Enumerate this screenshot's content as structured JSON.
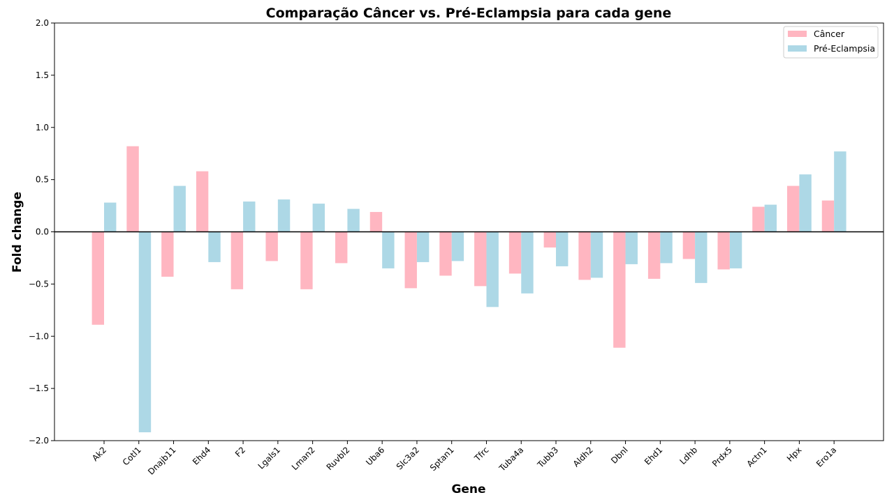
{
  "chart_data": {
    "type": "bar",
    "title": "Comparação Câncer vs. Pré-Eclampsia para cada gene",
    "xlabel": "Gene",
    "ylabel": "Fold change",
    "ylim": [
      -2.0,
      2.0
    ],
    "yticks": [
      -2.0,
      -1.5,
      -1.0,
      -0.5,
      0.0,
      0.5,
      1.0,
      1.5,
      2.0
    ],
    "ytick_labels": [
      "−2.0",
      "−1.5",
      "−1.0",
      "−0.5",
      "0.0",
      "0.5",
      "1.0",
      "1.5",
      "2.0"
    ],
    "grid": false,
    "legend_position": "top-right",
    "zero_line": true,
    "categories": [
      "Ak2",
      "Cotl1",
      "Dnajb11",
      "Ehd4",
      "F2",
      "Lgals1",
      "Lman2",
      "Ruvbl2",
      "Uba6",
      "Slc3a2",
      "Sptan1",
      "Tfrc",
      "Tuba4a",
      "Tubb3",
      "Aldh2",
      "Dbnl",
      "Ehd1",
      "Ldhb",
      "Prdx5",
      "Actn1",
      "Hpx",
      "Ero1a"
    ],
    "series": [
      {
        "name": "Câncer",
        "color": "#FFB6C1",
        "values": [
          -0.89,
          0.82,
          -0.43,
          0.58,
          -0.55,
          -0.28,
          -0.55,
          -0.3,
          0.19,
          -0.54,
          -0.42,
          -0.52,
          -0.4,
          -0.15,
          -0.46,
          -1.11,
          -0.45,
          -0.26,
          -0.36,
          0.24,
          0.44,
          0.3
        ]
      },
      {
        "name": "Pré-Eclampsia",
        "color": "#ADD8E6",
        "values": [
          0.28,
          -1.92,
          0.44,
          -0.29,
          0.29,
          0.31,
          0.27,
          0.22,
          -0.35,
          -0.29,
          -0.28,
          -0.72,
          -0.59,
          -0.33,
          -0.44,
          -0.31,
          -0.3,
          -0.49,
          -0.35,
          0.26,
          0.55,
          0.77
        ]
      }
    ]
  }
}
